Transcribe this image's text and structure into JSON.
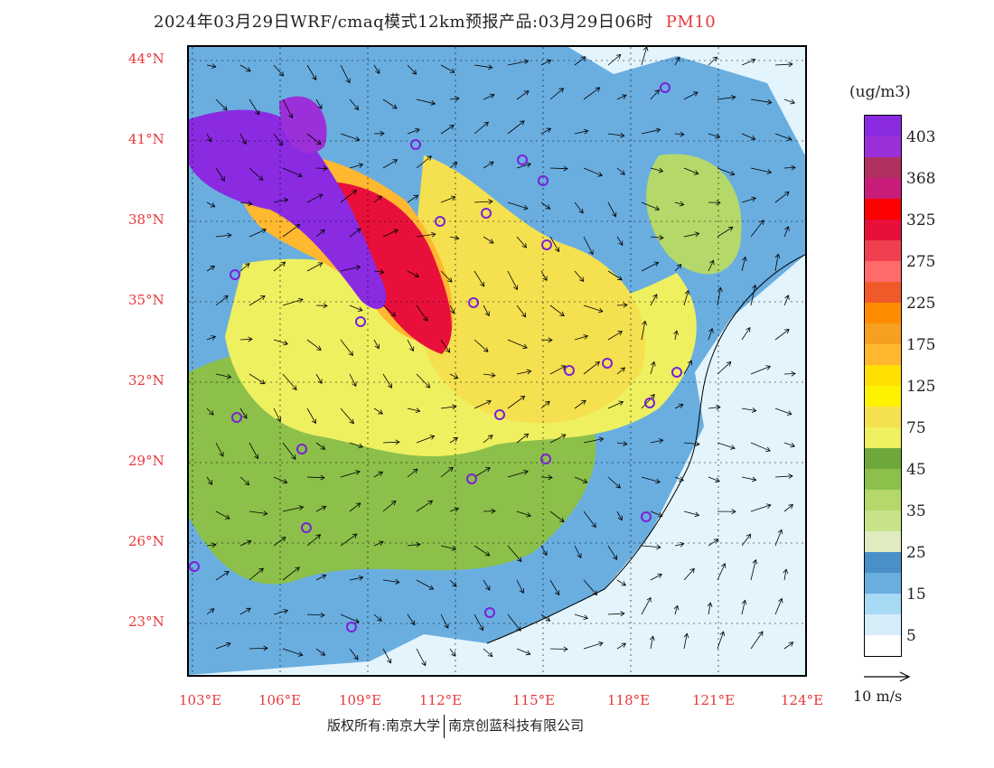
{
  "title": {
    "main": "2024年03月29日WRF/cmaq模式12km预报产品:03月29日06时",
    "pollutant": "PM10"
  },
  "latitude_labels": [
    "44°N",
    "41°N",
    "38°N",
    "35°N",
    "32°N",
    "29°N",
    "26°N",
    "23°N"
  ],
  "longitude_labels": [
    "103°E",
    "106°E",
    "109°E",
    "112°E",
    "115°E",
    "118°E",
    "121°E",
    "124°E"
  ],
  "colorbar": {
    "unit": "(ug/m3)",
    "tick_labels": [
      "403",
      "368",
      "325",
      "275",
      "225",
      "175",
      "125",
      "75",
      "45",
      "35",
      "25",
      "15",
      "5"
    ],
    "colors_top_to_bottom": [
      "#8a2be2",
      "#9b30d9",
      "#b03060",
      "#c81c7a",
      "#ff0000",
      "#e8103a",
      "#f04050",
      "#ff6a6a",
      "#f05a28",
      "#ff8c00",
      "#f5a020",
      "#ffb830",
      "#ffe000",
      "#fff200",
      "#f5e050",
      "#eef060",
      "#6fa83a",
      "#8cc04a",
      "#b5d86a",
      "#c8e28a",
      "#e0ecc0",
      "#4a90c8",
      "#6aaee0",
      "#a8daf5",
      "#d5eefa",
      "#ffffff"
    ]
  },
  "wind_scale_label": "10 m/s",
  "footer": {
    "left": "版权所有:南京大学",
    "right": "南京创蓝科技有限公司"
  }
}
